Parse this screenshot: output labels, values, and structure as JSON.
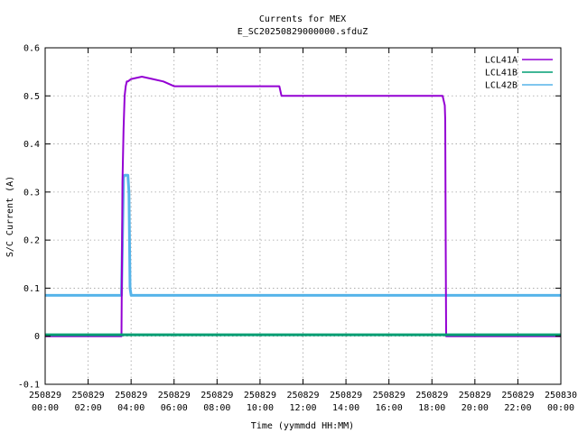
{
  "chart_data": {
    "type": "line",
    "title": "Currents for MEX",
    "subtitle": "E_SC20250829000000.sfduZ",
    "xlabel": "Time (yymmdd HH:MM)",
    "ylabel": "S/C Current (A)",
    "ylim": [
      -0.1,
      0.6
    ],
    "yticks": [
      -0.1,
      0,
      0.1,
      0.2,
      0.3,
      0.4,
      0.5,
      0.6
    ],
    "ytick_labels": [
      "-0.1",
      "0",
      "0.1",
      "0.2",
      "0.3",
      "0.4",
      "0.5",
      "0.6"
    ],
    "xlim": [
      0,
      24
    ],
    "xticks": [
      0,
      2,
      4,
      6,
      8,
      10,
      12,
      14,
      16,
      18,
      20,
      22,
      24
    ],
    "xtick_labels": [
      [
        "250829",
        "00:00"
      ],
      [
        "250829",
        "02:00"
      ],
      [
        "250829",
        "04:00"
      ],
      [
        "250829",
        "06:00"
      ],
      [
        "250829",
        "08:00"
      ],
      [
        "250829",
        "10:00"
      ],
      [
        "250829",
        "12:00"
      ],
      [
        "250829",
        "14:00"
      ],
      [
        "250829",
        "16:00"
      ],
      [
        "250829",
        "18:00"
      ],
      [
        "250829",
        "20:00"
      ],
      [
        "250829",
        "22:00"
      ],
      [
        "250830",
        "00:00"
      ]
    ],
    "grid": true,
    "legend_position": "top-right",
    "series": [
      {
        "name": "LCL41A",
        "color": "#9400d3",
        "x": [
          0,
          3.55,
          3.6,
          3.65,
          3.7,
          3.75,
          3.8,
          3.85,
          4.0,
          4.5,
          5.0,
          5.5,
          6.0,
          7.0,
          8.0,
          9.0,
          10.0,
          10.9,
          11.0,
          11.2,
          12.0,
          13.0,
          14.0,
          15.0,
          16.0,
          17.0,
          18.0,
          18.5,
          18.6,
          18.62,
          18.64,
          18.66,
          18.7,
          19.0,
          24
        ],
        "y": [
          0.0,
          0.0,
          0.32,
          0.43,
          0.5,
          0.52,
          0.53,
          0.53,
          0.535,
          0.54,
          0.535,
          0.53,
          0.52,
          0.52,
          0.52,
          0.52,
          0.52,
          0.52,
          0.5,
          0.5,
          0.5,
          0.5,
          0.5,
          0.5,
          0.5,
          0.5,
          0.5,
          0.5,
          0.48,
          0.45,
          0.2,
          0.0,
          0.0,
          0.0,
          0.0
        ]
      },
      {
        "name": "LCL41B",
        "color": "#009e73",
        "x": [
          0,
          24
        ],
        "y": [
          0.003,
          0.003
        ]
      },
      {
        "name": "LCL42B",
        "color": "#56b4e9",
        "x": [
          0,
          3.55,
          3.6,
          3.65,
          3.7,
          3.75,
          3.8,
          3.85,
          3.9,
          3.95,
          4.0,
          24
        ],
        "y": [
          0.085,
          0.085,
          0.2,
          0.33,
          0.335,
          0.335,
          0.335,
          0.335,
          0.3,
          0.1,
          0.085,
          0.085
        ]
      }
    ]
  }
}
